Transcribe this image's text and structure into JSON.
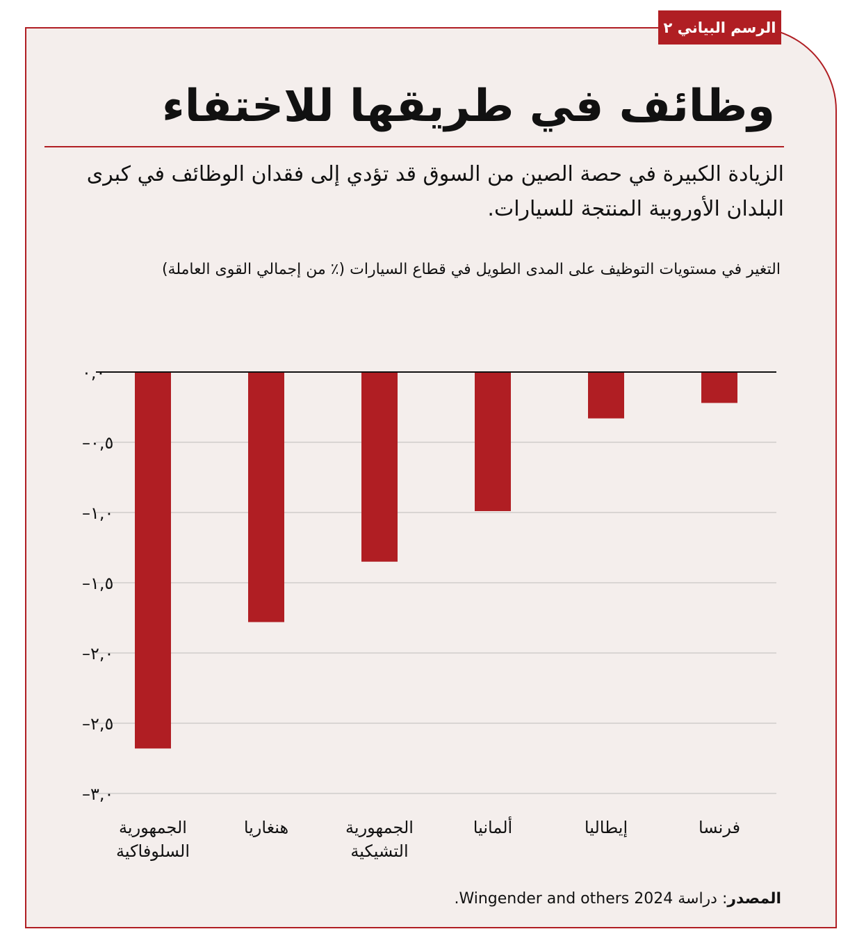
{
  "tag": "الرسم البياني ٢",
  "title": "وظائف في طريقها للاختفاء",
  "subtitle": "الزيادة الكبيرة في حصة الصين من السوق قد تؤدي إلى فقدان الوظائف في كبرى البلدان الأوروبية المنتجة للسيارات.",
  "source_label": "المصدر",
  "source_text": ": دراسة Wingender and others 2024.",
  "colors": {
    "bar": "#b01e23",
    "accent": "#b01e23",
    "background": "#f4eeec",
    "grid": "#d9d5d3"
  },
  "chart_data": {
    "type": "bar",
    "ylabel": "التغير في مستويات التوظيف على المدى الطويل في قطاع السيارات (٪ من إجمالي القوى العاملة)",
    "categories": [
      "فرنسا",
      "إيطاليا",
      "ألمانيا",
      "الجمهورية التشيكية",
      "هنغاريا",
      "الجمهورية السلوفاكية"
    ],
    "values": [
      -0.22,
      -0.33,
      -0.99,
      -1.35,
      -1.78,
      -2.68
    ],
    "ylim": [
      -3.0,
      0.0
    ],
    "yticks": [
      0.0,
      -0.5,
      -1.0,
      -1.5,
      -2.0,
      -2.5,
      -3.0
    ],
    "ytick_labels": [
      "٠,٠",
      "٠,٥–",
      "١,٠–",
      "١,٥–",
      "٢,٠–",
      "٢,٥–",
      "٣,٠–"
    ],
    "grid": true,
    "legend": "none"
  }
}
